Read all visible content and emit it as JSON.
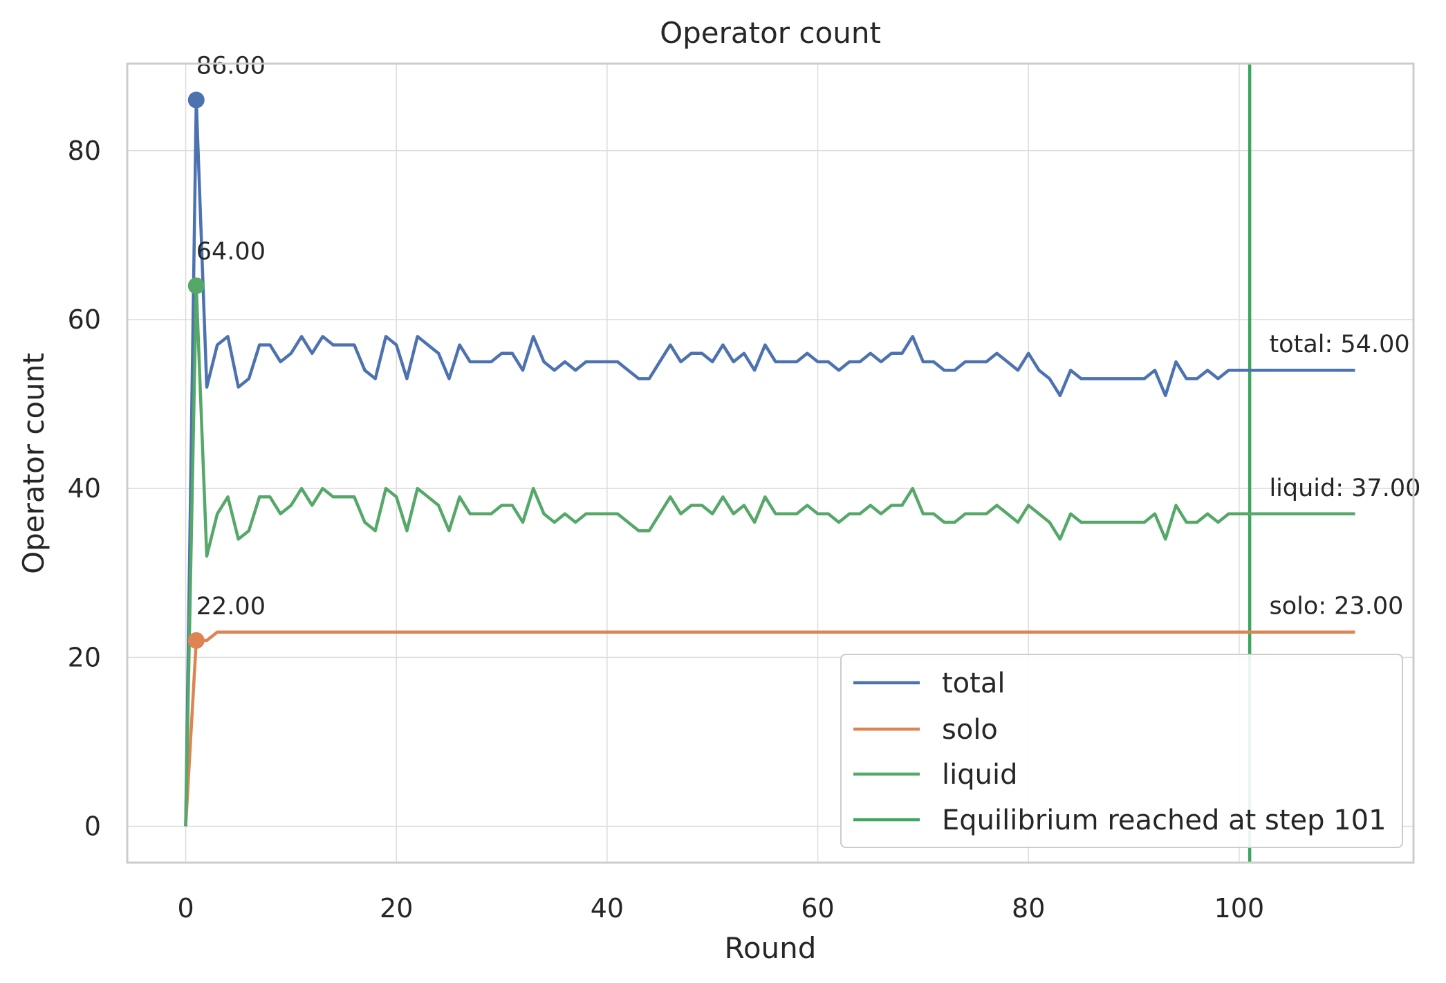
{
  "chart_data": {
    "type": "line",
    "title": "Operator count",
    "xlabel": "Round",
    "ylabel": "Operator count",
    "xlim": [
      -5.55,
      116.55
    ],
    "ylim": [
      -4.3,
      90.3
    ],
    "xticks": [
      0,
      20,
      40,
      60,
      80,
      100
    ],
    "yticks": [
      0,
      20,
      40,
      60,
      80
    ],
    "grid": true,
    "legend_position": "lower-right",
    "x": [
      0,
      1,
      2,
      3,
      4,
      5,
      6,
      7,
      8,
      9,
      10,
      11,
      12,
      13,
      14,
      15,
      16,
      17,
      18,
      19,
      20,
      21,
      22,
      23,
      24,
      25,
      26,
      27,
      28,
      29,
      30,
      31,
      32,
      33,
      34,
      35,
      36,
      37,
      38,
      39,
      40,
      41,
      42,
      43,
      44,
      45,
      46,
      47,
      48,
      49,
      50,
      51,
      52,
      53,
      54,
      55,
      56,
      57,
      58,
      59,
      60,
      61,
      62,
      63,
      64,
      65,
      66,
      67,
      68,
      69,
      70,
      71,
      72,
      73,
      74,
      75,
      76,
      77,
      78,
      79,
      80,
      81,
      82,
      83,
      84,
      85,
      86,
      87,
      88,
      89,
      90,
      91,
      92,
      93,
      94,
      95,
      96,
      97,
      98,
      99,
      100,
      101,
      102,
      103,
      104,
      105,
      106,
      107,
      108,
      109,
      110,
      111
    ],
    "series": [
      {
        "name": "total",
        "color": "#4c72b0",
        "values": [
          0,
          86,
          52,
          57,
          58,
          52,
          53,
          57,
          57,
          55,
          56,
          58,
          56,
          58,
          57,
          57,
          57,
          54,
          53,
          58,
          57,
          53,
          58,
          57,
          56,
          53,
          57,
          55,
          55,
          55,
          56,
          56,
          54,
          58,
          55,
          54,
          55,
          54,
          55,
          55,
          55,
          55,
          54,
          53,
          53,
          55,
          57,
          55,
          56,
          56,
          55,
          57,
          55,
          56,
          54,
          57,
          55,
          55,
          55,
          56,
          55,
          55,
          54,
          55,
          55,
          56,
          55,
          56,
          56,
          58,
          55,
          55,
          54,
          54,
          55,
          55,
          55,
          56,
          55,
          54,
          56,
          54,
          53,
          51,
          54,
          53,
          53,
          53,
          53,
          53,
          53,
          53,
          54,
          51,
          55,
          53,
          53,
          54,
          53,
          54,
          54,
          54,
          54,
          54,
          54,
          54,
          54,
          54,
          54,
          54,
          54,
          54
        ]
      },
      {
        "name": "solo",
        "color": "#dd8452",
        "values": [
          0,
          22,
          22,
          23,
          23,
          23,
          23,
          23,
          23,
          23,
          23,
          23,
          23,
          23,
          23,
          23,
          23,
          23,
          23,
          23,
          23,
          23,
          23,
          23,
          23,
          23,
          23,
          23,
          23,
          23,
          23,
          23,
          23,
          23,
          23,
          23,
          23,
          23,
          23,
          23,
          23,
          23,
          23,
          23,
          23,
          23,
          23,
          23,
          23,
          23,
          23,
          23,
          23,
          23,
          23,
          23,
          23,
          23,
          23,
          23,
          23,
          23,
          23,
          23,
          23,
          23,
          23,
          23,
          23,
          23,
          23,
          23,
          23,
          23,
          23,
          23,
          23,
          23,
          23,
          23,
          23,
          23,
          23,
          23,
          23,
          23,
          23,
          23,
          23,
          23,
          23,
          23,
          23,
          23,
          23,
          23,
          23,
          23,
          23,
          23,
          23,
          23,
          23,
          23,
          23,
          23,
          23,
          23,
          23,
          23,
          23,
          23
        ]
      },
      {
        "name": "liquid",
        "color": "#55a868",
        "values": [
          0,
          64,
          32,
          37,
          39,
          34,
          35,
          39,
          39,
          37,
          38,
          40,
          38,
          40,
          39,
          39,
          39,
          36,
          35,
          40,
          39,
          35,
          40,
          39,
          38,
          35,
          39,
          37,
          37,
          37,
          38,
          38,
          36,
          40,
          37,
          36,
          37,
          36,
          37,
          37,
          37,
          37,
          36,
          35,
          35,
          37,
          39,
          37,
          38,
          38,
          37,
          39,
          37,
          38,
          36,
          39,
          37,
          37,
          37,
          38,
          37,
          37,
          36,
          37,
          37,
          38,
          37,
          38,
          38,
          40,
          37,
          37,
          36,
          36,
          37,
          37,
          37,
          38,
          37,
          36,
          38,
          37,
          36,
          34,
          37,
          36,
          36,
          36,
          36,
          36,
          36,
          36,
          37,
          34,
          38,
          36,
          36,
          37,
          36,
          37,
          37,
          37,
          37,
          37,
          37,
          37,
          37,
          37,
          37,
          37,
          37,
          37
        ]
      }
    ],
    "equilibrium": {
      "x": 101,
      "color": "#3aa65f",
      "label": "Equilibrium reached at step 101"
    },
    "peak_annotations": [
      {
        "x": 1,
        "y": 86,
        "label": "86.00",
        "color": "#4c72b0"
      },
      {
        "x": 1,
        "y": 64,
        "label": "64.00",
        "color": "#55a868"
      },
      {
        "x": 1,
        "y": 22,
        "label": "22.00",
        "color": "#dd8452"
      }
    ],
    "end_annotations": [
      {
        "x": 111,
        "y": 54,
        "label": "total: 54.00"
      },
      {
        "x": 111,
        "y": 37,
        "label": "liquid: 37.00"
      },
      {
        "x": 111,
        "y": 23,
        "label": "solo: 23.00"
      }
    ]
  }
}
